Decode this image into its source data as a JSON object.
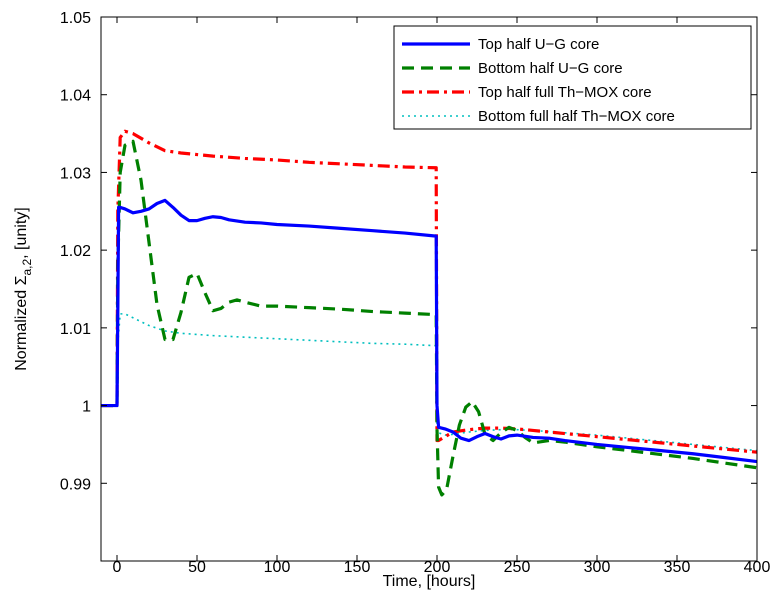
{
  "chart_data": {
    "type": "line",
    "title": "",
    "xlabel": "Time, [hours]",
    "ylabel_parts": {
      "prefix": "Normalized Σ",
      "subscript": "a,2",
      "suffix": ", [unity]"
    },
    "xlim": [
      -10,
      400
    ],
    "ylim": [
      0.98,
      1.05
    ],
    "xticks": [
      0,
      50,
      100,
      150,
      200,
      250,
      300,
      350,
      400
    ],
    "xtick_labels": [
      "0",
      "50",
      "100",
      "150",
      "200",
      "250",
      "300",
      "350",
      "400"
    ],
    "yticks": [
      0.99,
      1.0,
      1.01,
      1.02,
      1.03,
      1.04,
      1.05
    ],
    "ytick_labels": [
      "0.99",
      "1",
      "1.01",
      "1.02",
      "1.03",
      "1.04",
      "1.05"
    ],
    "grid": false,
    "legend_position": "top-right",
    "series": [
      {
        "name": "Top half U−G core",
        "color": "#0000ff",
        "style": "solid",
        "x": [
          -10,
          0,
          0.5,
          1,
          2,
          5,
          10,
          15,
          20,
          25,
          30,
          35,
          40,
          45,
          50,
          55,
          60,
          65,
          70,
          80,
          90,
          100,
          120,
          140,
          160,
          180,
          199.5,
          200,
          201,
          205,
          210,
          215,
          220,
          225,
          230,
          235,
          240,
          245,
          250,
          260,
          270,
          280,
          300,
          320,
          340,
          360,
          380,
          400
        ],
        "y": [
          1.0,
          1.0,
          1.012,
          1.0255,
          1.0255,
          1.0253,
          1.0248,
          1.025,
          1.0253,
          1.026,
          1.0264,
          1.0255,
          1.0245,
          1.0238,
          1.0238,
          1.0241,
          1.0243,
          1.0242,
          1.0239,
          1.0236,
          1.0235,
          1.0233,
          1.0231,
          1.0228,
          1.0225,
          1.0222,
          1.0218,
          1.0,
          0.9972,
          0.997,
          0.9966,
          0.9958,
          0.9955,
          0.996,
          0.9964,
          0.996,
          0.9957,
          0.9961,
          0.9962,
          0.9959,
          0.9958,
          0.9955,
          0.995,
          0.9946,
          0.9942,
          0.9938,
          0.9933,
          0.9928
        ]
      },
      {
        "name": "Bottom half U−G core",
        "color": "#008000",
        "style": "dashed",
        "x": [
          -10,
          0,
          0.5,
          2,
          5,
          10,
          15,
          20,
          25,
          30,
          35,
          40,
          45,
          50,
          55,
          60,
          65,
          70,
          75,
          80,
          90,
          100,
          120,
          140,
          160,
          180,
          199.5,
          200,
          201,
          203,
          206,
          210,
          214,
          218,
          222,
          226,
          230,
          235,
          240,
          245,
          250,
          255,
          260,
          270,
          280,
          300,
          320,
          340,
          360,
          380,
          400
        ],
        "y": [
          1.0,
          1.0,
          1.018,
          1.03,
          1.0335,
          1.034,
          1.029,
          1.021,
          1.013,
          1.0085,
          1.0085,
          1.012,
          1.0165,
          1.017,
          1.0145,
          1.0122,
          1.0125,
          1.0133,
          1.0136,
          1.0133,
          1.0128,
          1.0128,
          1.0126,
          1.0124,
          1.0121,
          1.0119,
          1.0117,
          0.997,
          0.9895,
          0.9885,
          0.9892,
          0.9935,
          0.9975,
          0.9998,
          1.0005,
          0.9992,
          0.9963,
          0.9955,
          0.9965,
          0.9972,
          0.9968,
          0.9959,
          0.9952,
          0.9955,
          0.9953,
          0.9947,
          0.9942,
          0.9937,
          0.9932,
          0.9926,
          0.992
        ]
      },
      {
        "name": "Top half full Th−MOX core",
        "color": "#ff0000",
        "style": "dashdot",
        "x": [
          -10,
          0,
          0.5,
          2,
          5,
          10,
          20,
          30,
          40,
          50,
          60,
          80,
          100,
          120,
          140,
          160,
          180,
          199.5,
          200,
          201,
          205,
          210,
          220,
          230,
          240,
          250,
          260,
          280,
          300,
          320,
          340,
          360,
          380,
          400
        ],
        "y": [
          1.0,
          1.0,
          1.025,
          1.0345,
          1.0353,
          1.035,
          1.0338,
          1.0328,
          1.0325,
          1.0323,
          1.0321,
          1.0318,
          1.0316,
          1.0313,
          1.0311,
          1.0309,
          1.0307,
          1.0306,
          0.9955,
          0.9955,
          0.996,
          0.9966,
          0.9969,
          0.9971,
          0.9971,
          0.997,
          0.9968,
          0.9964,
          0.996,
          0.9956,
          0.9952,
          0.9948,
          0.9944,
          0.994
        ]
      },
      {
        "name": "Bottom full half Th−MOX core",
        "color": "#00bfbf",
        "style": "dotted",
        "x": [
          -10,
          0,
          0.5,
          2,
          5,
          10,
          20,
          30,
          40,
          60,
          80,
          100,
          120,
          140,
          160,
          180,
          199.5,
          200,
          201,
          205,
          210,
          220,
          230,
          240,
          250,
          260,
          280,
          300,
          320,
          340,
          360,
          380,
          400
        ],
        "y": [
          1.0,
          1.0,
          1.008,
          1.0118,
          1.0118,
          1.0113,
          1.0103,
          1.0096,
          1.0093,
          1.009,
          1.0088,
          1.0086,
          1.0084,
          1.0082,
          1.008,
          1.0079,
          1.0077,
          0.997,
          0.9965,
          0.9962,
          0.9963,
          0.9966,
          0.9968,
          0.9969,
          0.9969,
          0.9968,
          0.9965,
          0.9962,
          0.9958,
          0.9954,
          0.995,
          0.9946,
          0.9942
        ]
      }
    ]
  }
}
